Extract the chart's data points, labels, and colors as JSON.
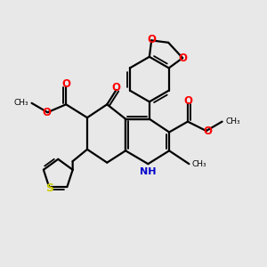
{
  "bg_color": "#e8e8e8",
  "bond_color": "#000000",
  "bond_width": 1.6,
  "O_color": "#ff0000",
  "N_color": "#0000cc",
  "S_color": "#cccc00",
  "figsize": [
    3.0,
    3.0
  ],
  "dpi": 100,
  "xlim": [
    0,
    10
  ],
  "ylim": [
    0,
    10
  ]
}
